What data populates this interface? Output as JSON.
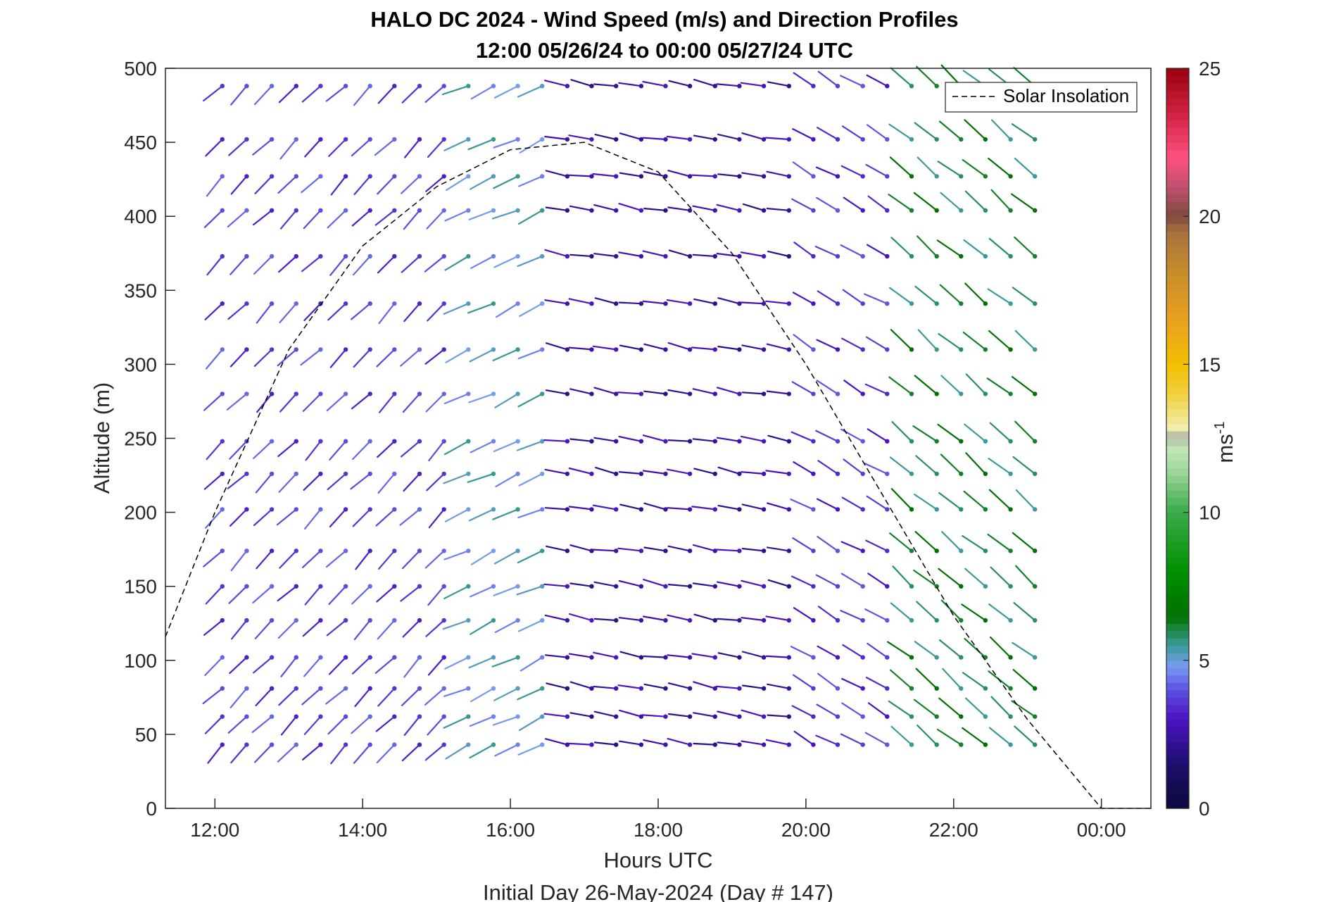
{
  "chart_data": {
    "type": "wind-barb-profile",
    "title": "HALO DC 2024 - Wind Speed (m/s) and Direction Profiles",
    "subtitle": "12:00 05/26/24 to 00:00 05/27/24  UTC",
    "xlabel": "Hours UTC",
    "xlabel2": "Initial Day 26-May-2024 (Day # 147)",
    "ylabel": "Altitude (m)",
    "xlim": [
      11.33,
      24.67
    ],
    "ylim": [
      0,
      500
    ],
    "xticks": [
      {
        "value": 12,
        "label": "12:00"
      },
      {
        "value": 14,
        "label": "14:00"
      },
      {
        "value": 16,
        "label": "16:00"
      },
      {
        "value": 18,
        "label": "18:00"
      },
      {
        "value": 20,
        "label": "20:00"
      },
      {
        "value": 22,
        "label": "22:00"
      },
      {
        "value": 24,
        "label": "00:00"
      }
    ],
    "yticks": [
      {
        "value": 0,
        "label": "0"
      },
      {
        "value": 50,
        "label": "50"
      },
      {
        "value": 100,
        "label": "100"
      },
      {
        "value": 150,
        "label": "150"
      },
      {
        "value": 200,
        "label": "200"
      },
      {
        "value": 250,
        "label": "250"
      },
      {
        "value": 300,
        "label": "300"
      },
      {
        "value": 350,
        "label": "350"
      },
      {
        "value": 400,
        "label": "400"
      },
      {
        "value": 450,
        "label": "450"
      },
      {
        "value": 500,
        "label": "500"
      }
    ],
    "legend": {
      "label": "Solar Insolation",
      "placement": "top-right"
    },
    "colorbar": {
      "label": "ms",
      "label_superscript": "-1",
      "range": [
        0,
        25
      ],
      "ticks": [
        {
          "value": 0,
          "label": "0"
        },
        {
          "value": 5,
          "label": "5"
        },
        {
          "value": 10,
          "label": "10"
        },
        {
          "value": 15,
          "label": "15"
        },
        {
          "value": 20,
          "label": "20"
        },
        {
          "value": 25,
          "label": "25"
        }
      ],
      "stops": [
        {
          "v": 0,
          "c": "#0a0a3c"
        },
        {
          "v": 1.5,
          "c": "#1e0f6e"
        },
        {
          "v": 3,
          "c": "#4a12c0"
        },
        {
          "v": 4,
          "c": "#5c50e0"
        },
        {
          "v": 4.8,
          "c": "#7a9cf0"
        },
        {
          "v": 5.5,
          "c": "#3a9a9a"
        },
        {
          "v": 6,
          "c": "#1f8a4a"
        },
        {
          "v": 6.5,
          "c": "#007000"
        },
        {
          "v": 8,
          "c": "#009000"
        },
        {
          "v": 10,
          "c": "#3aaa4a"
        },
        {
          "v": 11.5,
          "c": "#a6d8a0"
        },
        {
          "v": 12.3,
          "c": "#c8e8b8"
        },
        {
          "v": 12.5,
          "c": "#a0a0a0"
        },
        {
          "v": 12.8,
          "c": "#f0f0b0"
        },
        {
          "v": 14,
          "c": "#f2d040"
        },
        {
          "v": 15,
          "c": "#f2c000"
        },
        {
          "v": 16.5,
          "c": "#eaa020"
        },
        {
          "v": 18,
          "c": "#c8902a"
        },
        {
          "v": 19.5,
          "c": "#a87040"
        },
        {
          "v": 20,
          "c": "#7a4a3a"
        },
        {
          "v": 21,
          "c": "#c05070"
        },
        {
          "v": 22,
          "c": "#ff5080"
        },
        {
          "v": 23.5,
          "c": "#d02040"
        },
        {
          "v": 25,
          "c": "#9a0010"
        }
      ]
    },
    "altitudes": [
      43,
      62,
      81,
      102,
      127,
      150,
      174,
      202,
      226,
      248,
      280,
      310,
      341,
      373,
      404,
      427,
      452,
      488
    ],
    "times": [
      12.1,
      12.43,
      12.77,
      13.1,
      13.43,
      13.77,
      14.1,
      14.43,
      14.77,
      15.1,
      15.43,
      15.77,
      16.1,
      16.43,
      16.77,
      17.1,
      17.43,
      17.77,
      18.1,
      18.43,
      18.77,
      19.1,
      19.43,
      19.77,
      20.1,
      20.43,
      20.77,
      21.1,
      21.43,
      21.77,
      22.1,
      22.43,
      22.77,
      23.1
    ],
    "wind_segments": [
      {
        "start_hour": 12.1,
        "end_hour": 16.0,
        "direction_deg": 225,
        "speed_ms": 3.2
      },
      {
        "start_hour": 15.4,
        "end_hour": 16.6,
        "direction_deg": 245,
        "speed_ms": 4.5
      },
      {
        "start_hour": 16.6,
        "end_hour": 19.9,
        "direction_deg": 280,
        "speed_ms": 2.0
      },
      {
        "start_hour": 19.9,
        "end_hour": 21.4,
        "direction_deg": 300,
        "speed_ms": 3.0
      },
      {
        "start_hour": 21.4,
        "end_hour": 23.2,
        "direction_deg": 310,
        "speed_ms": 5.5
      }
    ],
    "solar_insolation_curve": [
      [
        11.33,
        116
      ],
      [
        12,
        200
      ],
      [
        13,
        310
      ],
      [
        14,
        380
      ],
      [
        15,
        420
      ],
      [
        16,
        445
      ],
      [
        17,
        450
      ],
      [
        18,
        430
      ],
      [
        19,
        375
      ],
      [
        20,
        300
      ],
      [
        21,
        215
      ],
      [
        22,
        130
      ],
      [
        23,
        60
      ],
      [
        24,
        0
      ],
      [
        24.67,
        0
      ]
    ]
  }
}
